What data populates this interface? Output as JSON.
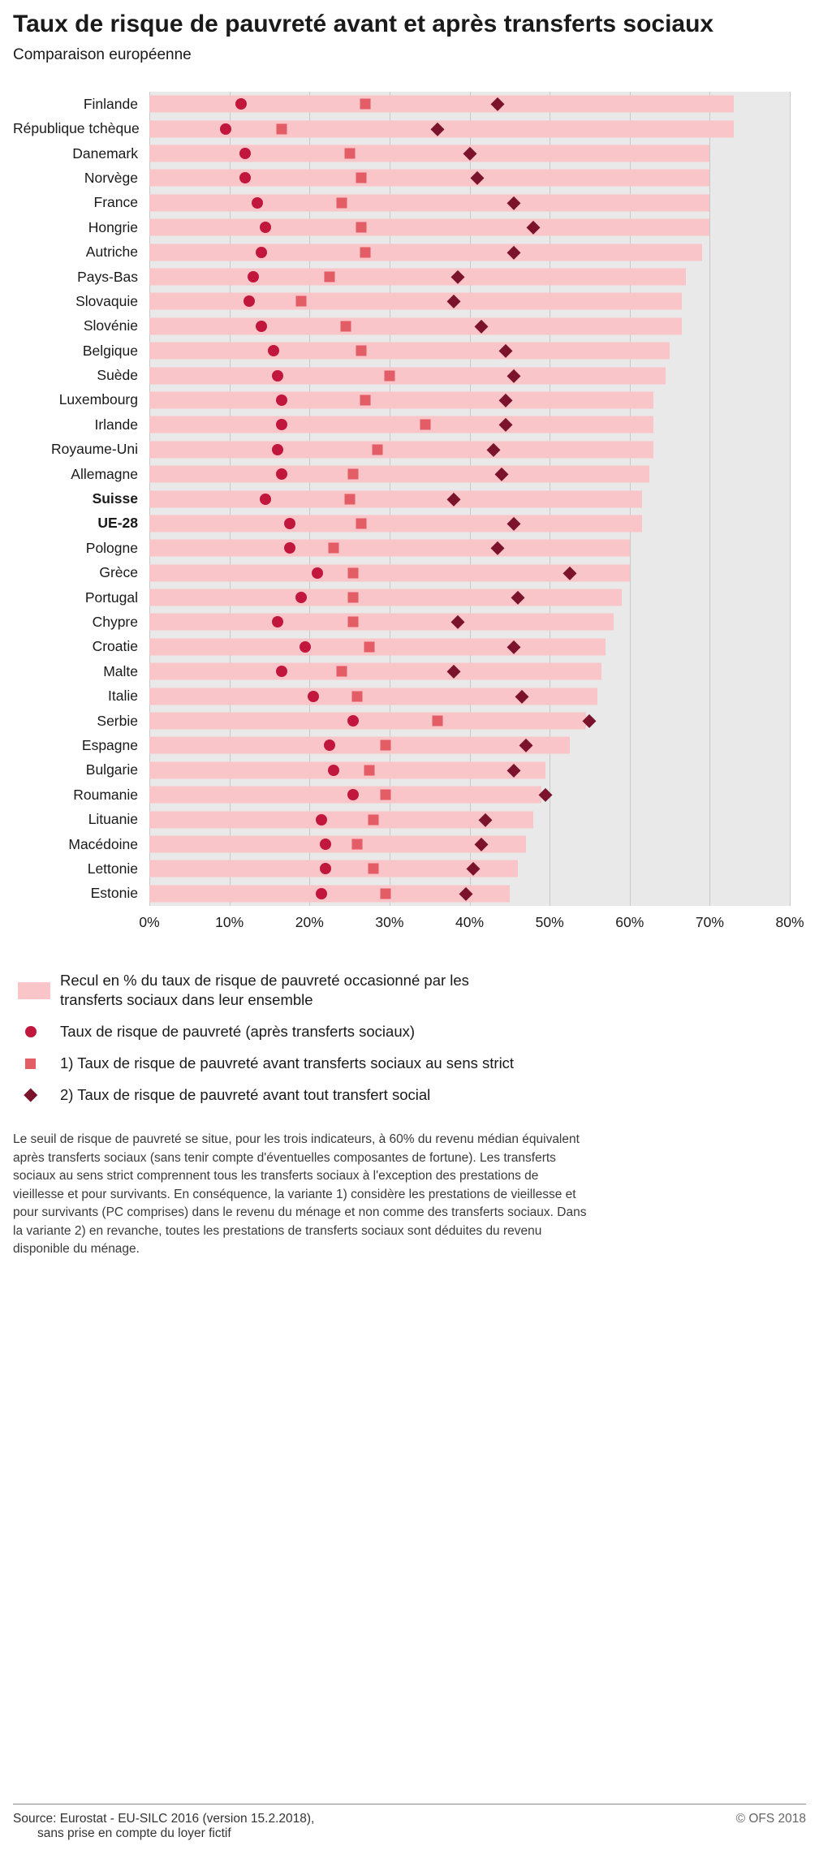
{
  "header": {
    "title": "Taux de risque de pauvreté avant et après transferts sociaux",
    "subtitle": "Comparaison européenne"
  },
  "colors": {
    "bar": "#f9c5c8",
    "circle": "#c1173d",
    "square": "#e25d66",
    "diamond": "#7a132b",
    "plot_bg": "#e9e9e9",
    "gridline": "#c9c9c9"
  },
  "chart_data": {
    "type": "bar",
    "orientation": "horizontal",
    "xlim": [
      0,
      80
    ],
    "x_ticks": [
      0,
      10,
      20,
      30,
      40,
      50,
      60,
      70,
      80
    ],
    "x_tick_labels": [
      "0%",
      "10%",
      "20%",
      "30%",
      "40%",
      "50%",
      "60%",
      "70%",
      "80%"
    ],
    "grid": true,
    "categories": [
      "Finlande",
      "République tchèque",
      "Danemark",
      "Norvège",
      "France",
      "Hongrie",
      "Autriche",
      "Pays-Bas",
      "Slovaquie",
      "Slovénie",
      "Belgique",
      "Suède",
      "Luxembourg",
      "Irlande",
      "Royaume-Uni",
      "Allemagne",
      "Suisse",
      "UE-28",
      "Pologne",
      "Grèce",
      "Portugal",
      "Chypre",
      "Croatie",
      "Malte",
      "Italie",
      "Serbie",
      "Espagne",
      "Bulgarie",
      "Roumanie",
      "Lituanie",
      "Macédoine",
      "Lettonie",
      "Estonie"
    ],
    "bold_categories": [
      "Suisse",
      "UE-28"
    ],
    "series": [
      {
        "name": "Recul en % du taux de risque de pauvreté occasionné par les transferts sociaux dans leur ensemble",
        "marker": "bar",
        "values": [
          73,
          73,
          70,
          70,
          70,
          70,
          69,
          67,
          66.5,
          66.5,
          65,
          64.5,
          63,
          63,
          63,
          62.5,
          61.5,
          61.5,
          60,
          60,
          59,
          58,
          57,
          56.5,
          56,
          54.5,
          52.5,
          49.5,
          49,
          48,
          47,
          46,
          45
        ]
      },
      {
        "name": "Taux de risque de pauvreté (après transferts sociaux)",
        "marker": "circle",
        "values": [
          11.5,
          9.5,
          12,
          12,
          13.5,
          14.5,
          14,
          13,
          12.5,
          14,
          15.5,
          16,
          16.5,
          16.5,
          16,
          16.5,
          14.5,
          17.5,
          17.5,
          21,
          19,
          16,
          19.5,
          16.5,
          20.5,
          25.5,
          22.5,
          23,
          25.5,
          21.5,
          22,
          22,
          21.5
        ]
      },
      {
        "name": "1) Taux de risque de pauvreté avant transferts sociaux au sens strict",
        "marker": "square",
        "values": [
          27,
          16.5,
          25,
          26.5,
          24,
          26.5,
          27,
          22.5,
          19,
          24.5,
          26.5,
          30,
          27,
          34.5,
          28.5,
          25.5,
          25,
          26.5,
          23,
          25.5,
          25.5,
          25.5,
          27.5,
          24,
          26,
          36,
          29.5,
          27.5,
          29.5,
          28,
          26,
          28,
          29.5
        ]
      },
      {
        "name": "2) Taux de risque de pauvreté avant tout transfert social",
        "marker": "diamond",
        "values": [
          43.5,
          36,
          40,
          41,
          45.5,
          48,
          45.5,
          38.5,
          38,
          41.5,
          44.5,
          45.5,
          44.5,
          44.5,
          43,
          44,
          38,
          45.5,
          43.5,
          52.5,
          46,
          38.5,
          45.5,
          38,
          46.5,
          55,
          47,
          45.5,
          49.5,
          42,
          41.5,
          40.5,
          39.5
        ]
      }
    ]
  },
  "legend": {
    "items": [
      {
        "swatch": "bar",
        "label": "Recul en % du taux de risque de pauvreté occasionné par les transferts sociaux dans leur ensemble"
      },
      {
        "swatch": "circle",
        "label": "Taux de risque de pauvreté (après transferts sociaux)"
      },
      {
        "swatch": "square",
        "label": "1) Taux de risque de pauvreté avant transferts sociaux au sens strict"
      },
      {
        "swatch": "diamond",
        "label": "2) Taux de risque de pauvreté avant tout transfert social"
      }
    ]
  },
  "footnote": "Le seuil de risque de pauvreté se situe, pour les trois indicateurs, à 60% du revenu médian équivalent après transferts sociaux (sans tenir compte d'éventuelles composantes de fortune). Les transferts sociaux au sens strict comprennent tous les transferts sociaux à l'exception des prestations de vieillesse et pour survivants. En conséquence, la variante 1) considère les prestations de vieillesse et pour survivants (PC comprises) dans le revenu du ménage et non comme des transferts sociaux. Dans la variante 2) en revanche, toutes les prestations de transferts sociaux sont déduites du revenu disponible du ménage.",
  "footer": {
    "source_line1": "Source: Eurostat - EU-SILC 2016 (version 15.2.2018),",
    "source_line2": "sans prise en compte du loyer fictif",
    "copyright": "© OFS 2018"
  }
}
